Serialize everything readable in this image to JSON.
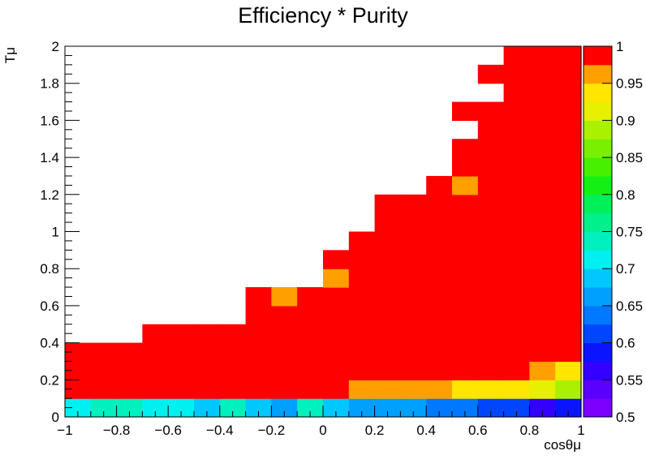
{
  "chart_data": {
    "type": "heatmap",
    "title": "Efficiency * Purity",
    "xlabel": "cosθμ",
    "ylabel": "Tμ",
    "xlim": [
      -1,
      1
    ],
    "ylim": [
      0,
      2
    ],
    "x_bin_edges": [
      -1,
      -0.9,
      -0.8,
      -0.7,
      -0.6,
      -0.5,
      -0.4,
      -0.3,
      -0.2,
      -0.1,
      0,
      0.1,
      0.2,
      0.3,
      0.4,
      0.5,
      0.6,
      0.7,
      0.8,
      0.9,
      1
    ],
    "y_bin_edges": [
      0,
      0.1,
      0.2,
      0.3,
      0.4,
      0.5,
      0.6,
      0.7,
      0.8,
      0.9,
      1.0,
      1.1,
      1.2,
      1.3,
      1.4,
      1.5,
      1.6,
      1.7,
      1.8,
      1.9,
      2.0
    ],
    "values": [
      [
        0.72,
        0.74,
        0.74,
        0.72,
        0.72,
        0.7,
        0.74,
        0.69,
        0.66,
        0.74,
        0.69,
        0.67,
        0.67,
        0.67,
        0.63,
        0.63,
        0.61,
        0.61,
        0.56,
        0.59
      ],
      [
        1,
        1,
        1,
        1,
        1,
        1,
        1,
        1,
        1,
        1,
        1,
        0.97,
        0.97,
        0.97,
        0.97,
        0.94,
        0.94,
        0.94,
        0.91,
        0.88
      ],
      [
        1,
        1,
        1,
        1,
        1,
        1,
        1,
        1,
        1,
        1,
        1,
        1,
        1,
        1,
        1,
        1,
        1,
        1,
        0.97,
        0.94
      ],
      [
        1,
        1,
        1,
        1,
        1,
        1,
        1,
        1,
        1,
        1,
        1,
        1,
        1,
        1,
        1,
        1,
        1,
        1,
        1,
        1
      ],
      [
        null,
        null,
        null,
        1,
        1,
        1,
        1,
        1,
        1,
        1,
        1,
        1,
        1,
        1,
        1,
        1,
        1,
        1,
        1,
        1
      ],
      [
        null,
        null,
        null,
        null,
        null,
        null,
        null,
        1,
        1,
        1,
        1,
        1,
        1,
        1,
        1,
        1,
        1,
        1,
        1,
        1
      ],
      [
        null,
        null,
        null,
        null,
        null,
        null,
        null,
        1,
        0.97,
        1,
        1,
        1,
        1,
        1,
        1,
        1,
        1,
        1,
        1,
        1
      ],
      [
        null,
        null,
        null,
        null,
        null,
        null,
        null,
        null,
        null,
        null,
        0.97,
        1,
        1,
        1,
        1,
        1,
        1,
        1,
        1,
        1
      ],
      [
        null,
        null,
        null,
        null,
        null,
        null,
        null,
        null,
        null,
        null,
        1,
        1,
        1,
        1,
        1,
        1,
        1,
        1,
        1,
        1
      ],
      [
        null,
        null,
        null,
        null,
        null,
        null,
        null,
        null,
        null,
        null,
        null,
        1,
        1,
        1,
        1,
        1,
        1,
        1,
        1,
        1
      ],
      [
        null,
        null,
        null,
        null,
        null,
        null,
        null,
        null,
        null,
        null,
        null,
        null,
        1,
        1,
        1,
        1,
        1,
        1,
        1,
        1
      ],
      [
        null,
        null,
        null,
        null,
        null,
        null,
        null,
        null,
        null,
        null,
        null,
        null,
        1,
        1,
        1,
        1,
        1,
        1,
        1,
        1
      ],
      [
        null,
        null,
        null,
        null,
        null,
        null,
        null,
        null,
        null,
        null,
        null,
        null,
        null,
        null,
        1,
        0.97,
        1,
        1,
        1,
        1
      ],
      [
        null,
        null,
        null,
        null,
        null,
        null,
        null,
        null,
        null,
        null,
        null,
        null,
        null,
        null,
        null,
        1,
        1,
        1,
        1,
        1
      ],
      [
        null,
        null,
        null,
        null,
        null,
        null,
        null,
        null,
        null,
        null,
        null,
        null,
        null,
        null,
        null,
        1,
        1,
        1,
        1,
        1
      ],
      [
        null,
        null,
        null,
        null,
        null,
        null,
        null,
        null,
        null,
        null,
        null,
        null,
        null,
        null,
        null,
        null,
        1,
        1,
        1,
        1
      ],
      [
        null,
        null,
        null,
        null,
        null,
        null,
        null,
        null,
        null,
        null,
        null,
        null,
        null,
        null,
        null,
        1,
        1,
        1,
        1,
        1
      ],
      [
        null,
        null,
        null,
        null,
        null,
        null,
        null,
        null,
        null,
        null,
        null,
        null,
        null,
        null,
        null,
        null,
        null,
        1,
        1,
        1
      ],
      [
        null,
        null,
        null,
        null,
        null,
        null,
        null,
        null,
        null,
        null,
        null,
        null,
        null,
        null,
        null,
        null,
        1,
        1,
        1,
        1
      ],
      [
        null,
        null,
        null,
        null,
        null,
        null,
        null,
        null,
        null,
        null,
        null,
        null,
        null,
        null,
        null,
        null,
        null,
        1,
        1,
        1
      ]
    ],
    "x_ticks": [
      -1,
      -0.8,
      -0.6,
      -0.4,
      -0.2,
      0,
      0.2,
      0.4,
      0.6,
      0.8,
      1
    ],
    "x_tick_labels": [
      "−1",
      "−0.8",
      "−0.6",
      "−0.4",
      "−0.2",
      "0",
      "0.2",
      "0.4",
      "0.6",
      "0.8",
      "1"
    ],
    "y_ticks": [
      0,
      0.2,
      0.4,
      0.6,
      0.8,
      1,
      1.2,
      1.4,
      1.6,
      1.8,
      2
    ],
    "y_tick_labels": [
      "0",
      "0.2",
      "0.4",
      "0.6",
      "0.8",
      "1",
      "1.2",
      "1.4",
      "1.6",
      "1.8",
      "2"
    ],
    "colorbar": {
      "zlim": [
        0.5,
        1
      ],
      "levels": 20,
      "ticks": [
        0.5,
        0.55,
        0.6,
        0.65,
        0.7,
        0.75,
        0.8,
        0.85,
        0.9,
        0.95,
        1
      ],
      "tick_labels": [
        "0.5",
        "0.55",
        "0.6",
        "0.65",
        "0.7",
        "0.75",
        "0.8",
        "0.85",
        "0.9",
        "0.95",
        "1"
      ],
      "palette": [
        "#7d00ff",
        "#5a00ff",
        "#3300ff",
        "#0a14ff",
        "#0046ff",
        "#0078ff",
        "#00a0ff",
        "#00c8ff",
        "#00f0f0",
        "#00f0be",
        "#00f08c",
        "#00f05a",
        "#14f014",
        "#46f000",
        "#78f000",
        "#aaf000",
        "#e6f000",
        "#ffe600",
        "#ffa000",
        "#ff7800"
      ],
      "top_color": "#ff0000"
    }
  }
}
